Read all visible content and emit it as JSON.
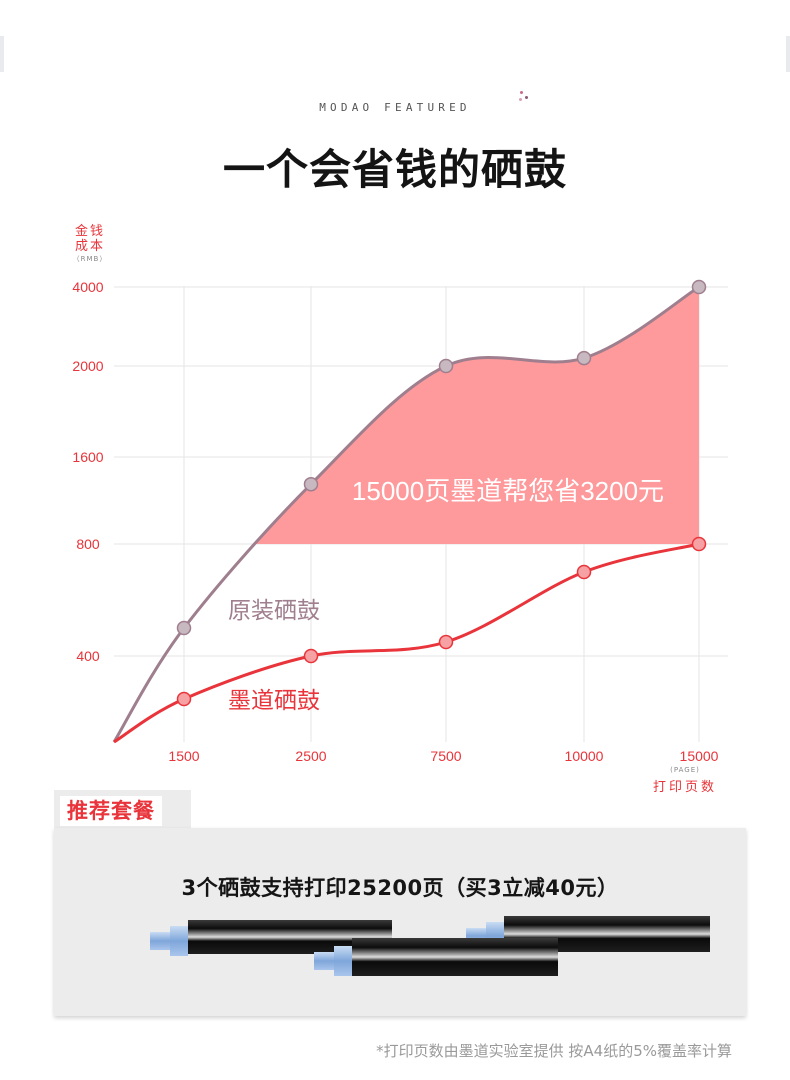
{
  "header": {
    "brand": "MODAO FEATURED",
    "title": "一个会省钱的硒鼓"
  },
  "chart_data": {
    "type": "area",
    "y_unit": "金钱成本",
    "y_unit_en": "（RMB）",
    "x_unit": "打印页数",
    "x_unit_en": "(PAGE)",
    "categories": [
      "1500",
      "2500",
      "7500",
      "10000",
      "15000"
    ],
    "y_ticks": [
      "4000",
      "2000",
      "1600",
      "800",
      "400"
    ],
    "series": [
      {
        "name": "原装硒鼓",
        "values": [
          500,
          1350,
          2000,
          2200,
          4000
        ],
        "color": "#9f7e8e"
      },
      {
        "name": "墨道硒鼓",
        "values": [
          200,
          400,
          450,
          700,
          800
        ],
        "color": "#e8343a"
      }
    ],
    "annotation": "15000页墨道帮您省3200元",
    "fill_color": "#ff9a9c"
  },
  "package": {
    "tab_label": "推荐套餐",
    "headline": "3个硒鼓支持打印25200页（买3立减40元）"
  },
  "footnote": "*打印页数由墨道实验室提供 按A4纸的5%覆盖率计算"
}
